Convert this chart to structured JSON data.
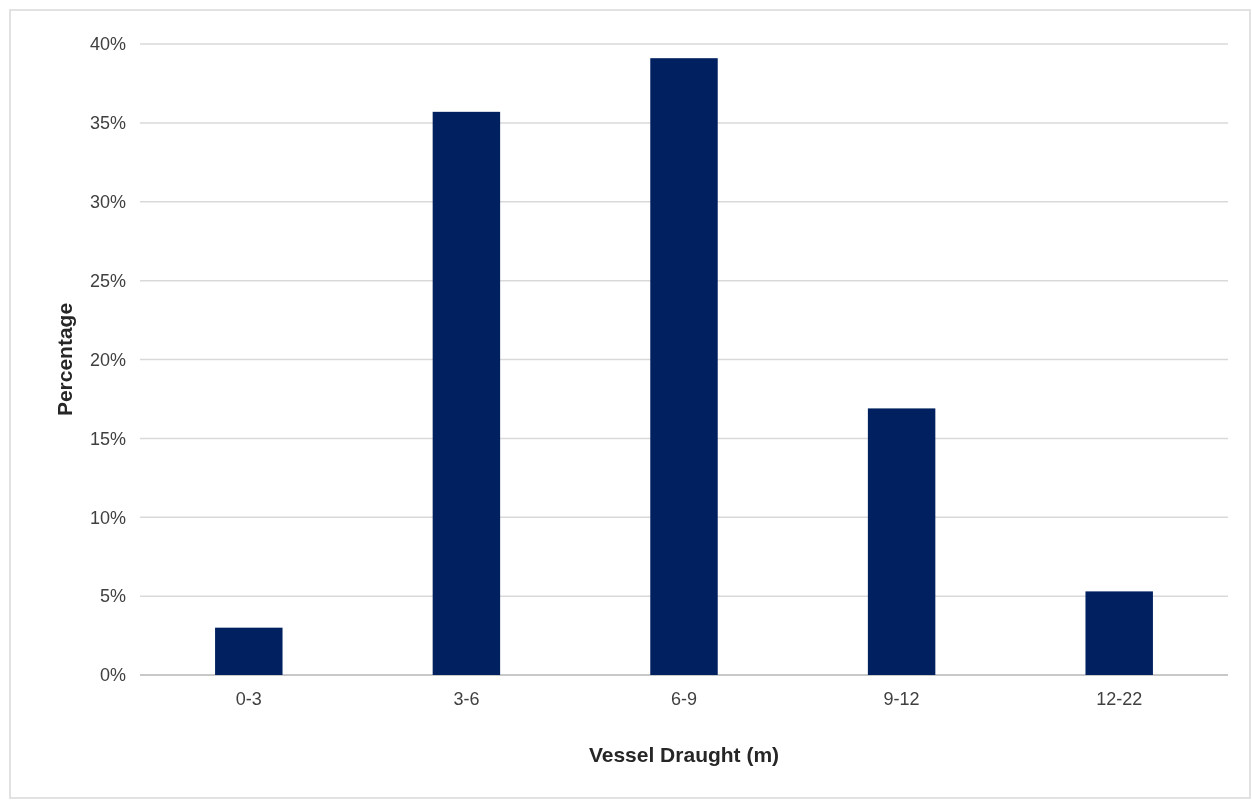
{
  "chart_data": {
    "type": "bar",
    "xlabel": "Vessel Draught (m)",
    "ylabel": "Percentage",
    "categories": [
      "0-3",
      "3-6",
      "6-9",
      "9-12",
      "12-22"
    ],
    "values": [
      3.0,
      35.7,
      39.1,
      16.9,
      5.3
    ],
    "color": "#002060",
    "ylim": [
      0,
      40
    ],
    "yticks": [
      {
        "value": 0,
        "label": "0%"
      },
      {
        "value": 5,
        "label": "5%"
      },
      {
        "value": 10,
        "label": "10%"
      },
      {
        "value": 15,
        "label": "15%"
      },
      {
        "value": 20,
        "label": "20%"
      },
      {
        "value": 25,
        "label": "25%"
      },
      {
        "value": 30,
        "label": "30%"
      },
      {
        "value": 35,
        "label": "35%"
      },
      {
        "value": 40,
        "label": "40%"
      }
    ],
    "grid": "y"
  }
}
